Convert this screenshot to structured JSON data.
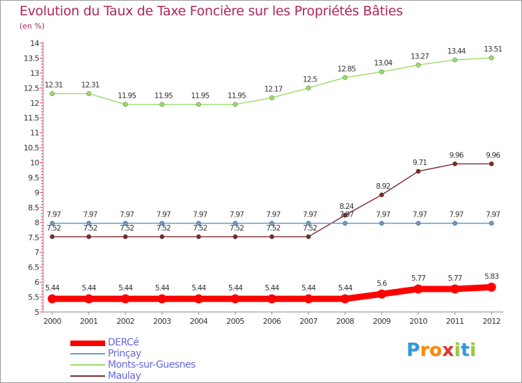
{
  "chart_data": {
    "type": "line",
    "title": "Evolution du Taux de Taxe Foncière sur les Propriétés Bâties",
    "subtitle": "(en %)",
    "xlabel": "",
    "ylabel": "",
    "x": [
      "2000",
      "2001",
      "2002",
      "2003",
      "2004",
      "2005",
      "2006",
      "2007",
      "2008",
      "2009",
      "2010",
      "2011",
      "2012"
    ],
    "ylim": [
      5,
      14
    ],
    "yticks": [
      "5",
      "5.5",
      "6",
      "6.5",
      "7",
      "7.5",
      "8",
      "8.5",
      "9",
      "9.5",
      "10",
      "10.5",
      "11",
      "11.5",
      "12",
      "12.5",
      "13",
      "13.5",
      "14"
    ],
    "grid": false,
    "series": [
      {
        "name": "DERCé",
        "color": "#ff0000",
        "values": [
          5.44,
          5.44,
          5.44,
          5.44,
          5.44,
          5.44,
          5.44,
          5.44,
          5.44,
          5.6,
          5.77,
          5.77,
          5.83
        ],
        "labels": [
          "5.44",
          "5.44",
          "5.44",
          "5.44",
          "5.44",
          "5.44",
          "5.44",
          "5.44",
          "5.44",
          "5.6",
          "5.77",
          "5.77",
          "5.83"
        ]
      },
      {
        "name": "Prinçay",
        "color": "#6699cc",
        "values": [
          7.97,
          7.97,
          7.97,
          7.97,
          7.97,
          7.97,
          7.97,
          7.97,
          7.97,
          7.97,
          7.97,
          7.97,
          7.97
        ],
        "labels": [
          "7.97",
          "7.97",
          "7.97",
          "7.97",
          "7.97",
          "7.97",
          "7.97",
          "7.97",
          "7.97",
          "7.97",
          "7.97",
          "7.97",
          "7.97"
        ]
      },
      {
        "name": "Monts-sur-Guesnes",
        "color": "#99dd66",
        "values": [
          12.31,
          12.31,
          11.95,
          11.95,
          11.95,
          11.95,
          12.17,
          12.5,
          12.85,
          13.04,
          13.27,
          13.44,
          13.51
        ],
        "labels": [
          "12.31",
          "12.31",
          "11.95",
          "11.95",
          "11.95",
          "11.95",
          "12.17",
          "12.5",
          "12.85",
          "13.04",
          "13.27",
          "13.44",
          "13.51"
        ]
      },
      {
        "name": "Maulay",
        "color": "#7a2a2a",
        "values": [
          7.52,
          7.52,
          7.52,
          7.52,
          7.52,
          7.52,
          7.52,
          7.52,
          8.24,
          8.92,
          9.71,
          9.96,
          9.96
        ],
        "labels": [
          "7.52",
          "7.52",
          "7.52",
          "7.52",
          "7.52",
          "7.52",
          "7.52",
          "7.52",
          "8.24",
          "8.92",
          "9.71",
          "9.96",
          "9.96"
        ]
      }
    ],
    "legend": "bottom-left"
  },
  "logo": {
    "text": [
      "P",
      "r",
      "o",
      "x",
      "i",
      "t",
      "i"
    ],
    "colors": [
      "#3399dd",
      "#ff8800",
      "#ff8800",
      "#dd3333",
      "#99cc33",
      "#3399dd",
      "#99cc33"
    ]
  }
}
